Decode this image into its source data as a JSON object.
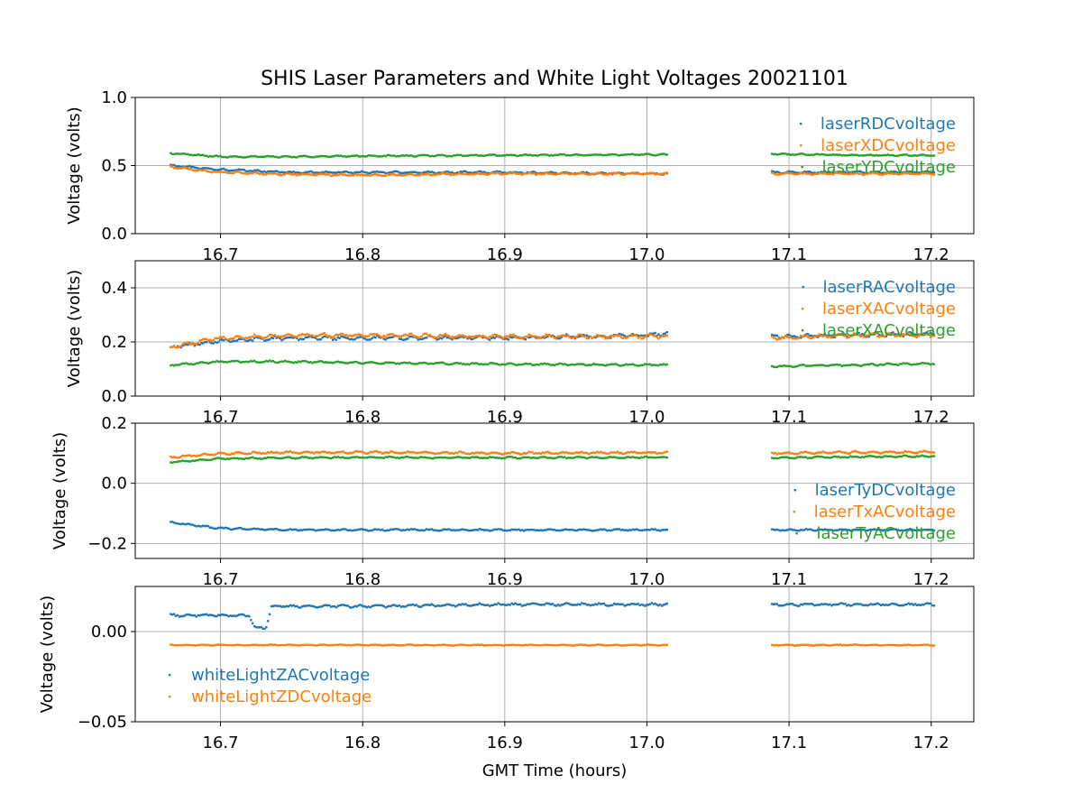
{
  "figure": {
    "title": "SHIS Laser Parameters and White Light Voltages 20021101",
    "xlabel": "GMT Time (hours)"
  },
  "chart_data": [
    {
      "type": "scatter",
      "title": "SHIS Laser Parameters and White Light Voltages 20021101",
      "xlabel": "",
      "ylabel": "Voltage (volts)",
      "xlim": [
        16.64,
        17.23
      ],
      "ylim": [
        0.0,
        1.0
      ],
      "xticks": [
        "16.7",
        "16.8",
        "16.9",
        "17.0",
        "17.1",
        "17.2"
      ],
      "yticks": [
        {
          "value": 0.0,
          "label": "0.0"
        },
        {
          "value": 0.5,
          "label": "0.5"
        },
        {
          "value": 1.0,
          "label": "1.0"
        }
      ],
      "grid": true,
      "legend": "top-right",
      "segments": [
        [
          16.665,
          17.015
        ],
        [
          17.088,
          17.202
        ]
      ],
      "series": [
        {
          "name": "laserRDCvoltage",
          "color": "#1f77b4",
          "x": [
            16.665,
            16.7,
            16.75,
            16.8,
            16.9,
            17.0,
            17.015,
            17.088,
            17.15,
            17.202
          ],
          "y": [
            0.5,
            0.47,
            0.45,
            0.45,
            0.45,
            0.44,
            0.44,
            0.45,
            0.45,
            0.45
          ],
          "noise": 0.008
        },
        {
          "name": "laserXDCvoltage",
          "color": "#ff7f0e",
          "x": [
            16.665,
            16.7,
            16.75,
            16.8,
            16.9,
            17.0,
            17.015,
            17.088,
            17.15,
            17.202
          ],
          "y": [
            0.49,
            0.45,
            0.435,
            0.43,
            0.44,
            0.44,
            0.44,
            0.44,
            0.44,
            0.44
          ],
          "noise": 0.008
        },
        {
          "name": "laserYDCvoltage",
          "color": "#2ca02c",
          "x": [
            16.665,
            16.7,
            16.75,
            16.8,
            16.9,
            17.0,
            17.015,
            17.088,
            17.15,
            17.202
          ],
          "y": [
            0.59,
            0.565,
            0.565,
            0.57,
            0.575,
            0.58,
            0.58,
            0.585,
            0.575,
            0.575
          ],
          "noise": 0.006
        }
      ]
    },
    {
      "type": "scatter",
      "title": "",
      "xlabel": "",
      "ylabel": "Voltage (volts)",
      "xlim": [
        16.64,
        17.23
      ],
      "ylim": [
        0.0,
        0.5
      ],
      "xticks": [
        "16.7",
        "16.8",
        "16.9",
        "17.0",
        "17.1",
        "17.2"
      ],
      "yticks": [
        {
          "value": 0.0,
          "label": "0.0"
        },
        {
          "value": 0.2,
          "label": "0.2"
        },
        {
          "value": 0.4,
          "label": "0.4"
        }
      ],
      "grid": true,
      "legend": "top-right",
      "segments": [
        [
          16.665,
          17.015
        ],
        [
          17.088,
          17.202
        ]
      ],
      "series": [
        {
          "name": "laserRACvoltage",
          "color": "#1f77b4",
          "x": [
            16.665,
            16.7,
            16.75,
            16.8,
            16.9,
            17.0,
            17.015,
            17.088,
            17.15,
            17.202
          ],
          "y": [
            0.18,
            0.205,
            0.215,
            0.215,
            0.215,
            0.225,
            0.23,
            0.22,
            0.225,
            0.23
          ],
          "noise": 0.008
        },
        {
          "name": "laserXACvoltage",
          "color": "#ff7f0e",
          "x": [
            16.665,
            16.7,
            16.75,
            16.8,
            16.9,
            17.0,
            17.015,
            17.088,
            17.15,
            17.202
          ],
          "y": [
            0.18,
            0.215,
            0.225,
            0.225,
            0.22,
            0.22,
            0.22,
            0.215,
            0.225,
            0.225
          ],
          "noise": 0.008
        },
        {
          "name": "laserXACvoltage",
          "color": "#2ca02c",
          "x": [
            16.665,
            16.7,
            16.75,
            16.8,
            16.9,
            17.0,
            17.015,
            17.088,
            17.15,
            17.202
          ],
          "y": [
            0.115,
            0.127,
            0.127,
            0.123,
            0.118,
            0.115,
            0.115,
            0.11,
            0.115,
            0.12
          ],
          "noise": 0.004
        }
      ]
    },
    {
      "type": "scatter",
      "title": "",
      "xlabel": "",
      "ylabel": "Voltage (volts)",
      "xlim": [
        16.64,
        17.23
      ],
      "ylim": [
        -0.25,
        0.2
      ],
      "xticks": [
        "16.7",
        "16.8",
        "16.9",
        "17.0",
        "17.1",
        "17.2"
      ],
      "yticks": [
        {
          "value": -0.2,
          "label": "−0.2"
        },
        {
          "value": 0.0,
          "label": "0.0"
        },
        {
          "value": 0.2,
          "label": "0.2"
        }
      ],
      "grid": true,
      "legend": "bottom-right",
      "segments": [
        [
          16.665,
          17.015
        ],
        [
          17.088,
          17.202
        ]
      ],
      "series": [
        {
          "name": "laserTyDCvoltage",
          "color": "#1f77b4",
          "x": [
            16.665,
            16.7,
            16.75,
            16.8,
            16.9,
            17.0,
            17.015,
            17.088,
            17.15,
            17.202
          ],
          "y": [
            -0.13,
            -0.15,
            -0.155,
            -0.155,
            -0.155,
            -0.155,
            -0.155,
            -0.155,
            -0.155,
            -0.155
          ],
          "noise": 0.003
        },
        {
          "name": "laserTxACvoltage",
          "color": "#ff7f0e",
          "x": [
            16.665,
            16.7,
            16.75,
            16.8,
            16.9,
            17.0,
            17.015,
            17.088,
            17.15,
            17.202
          ],
          "y": [
            0.087,
            0.098,
            0.103,
            0.103,
            0.1,
            0.102,
            0.102,
            0.1,
            0.103,
            0.104
          ],
          "noise": 0.004
        },
        {
          "name": "laserTyACvoltage",
          "color": "#2ca02c",
          "x": [
            16.665,
            16.7,
            16.75,
            16.8,
            16.9,
            17.0,
            17.015,
            17.088,
            17.15,
            17.202
          ],
          "y": [
            0.07,
            0.082,
            0.085,
            0.086,
            0.085,
            0.086,
            0.086,
            0.085,
            0.088,
            0.09
          ],
          "noise": 0.003
        }
      ]
    },
    {
      "type": "scatter",
      "title": "",
      "xlabel": "GMT Time (hours)",
      "ylabel": "Voltage (volts)",
      "xlim": [
        16.64,
        17.23
      ],
      "ylim": [
        -0.05,
        0.025
      ],
      "xticks": [
        "16.7",
        "16.8",
        "16.9",
        "17.0",
        "17.1",
        "17.2"
      ],
      "yticks": [
        {
          "value": -0.05,
          "label": "−0.05"
        },
        {
          "value": 0.0,
          "label": "0.00"
        }
      ],
      "grid": true,
      "legend": "lower-left",
      "segments": [
        [
          16.665,
          17.015
        ],
        [
          17.088,
          17.202
        ]
      ],
      "series": [
        {
          "name": "whiteLightZACvoltage",
          "color": "#1f77b4",
          "x": [
            16.665,
            16.72,
            16.724,
            16.728,
            16.732,
            16.736,
            16.75,
            16.8,
            16.9,
            17.0,
            17.015,
            17.088,
            17.15,
            17.202
          ],
          "y": [
            0.009,
            0.009,
            0.002,
            0.002,
            0.002,
            0.014,
            0.014,
            0.014,
            0.015,
            0.015,
            0.015,
            0.015,
            0.015,
            0.015
          ],
          "noise": 0.0008
        },
        {
          "name": "whiteLightZDCvoltage",
          "color": "#ff7f0e",
          "x": [
            16.665,
            16.8,
            16.9,
            17.0,
            17.015,
            17.088,
            17.15,
            17.202
          ],
          "y": [
            -0.0075,
            -0.0075,
            -0.0075,
            -0.0075,
            -0.0075,
            -0.0075,
            -0.0075,
            -0.0075
          ],
          "noise": 0.0003
        }
      ]
    }
  ]
}
